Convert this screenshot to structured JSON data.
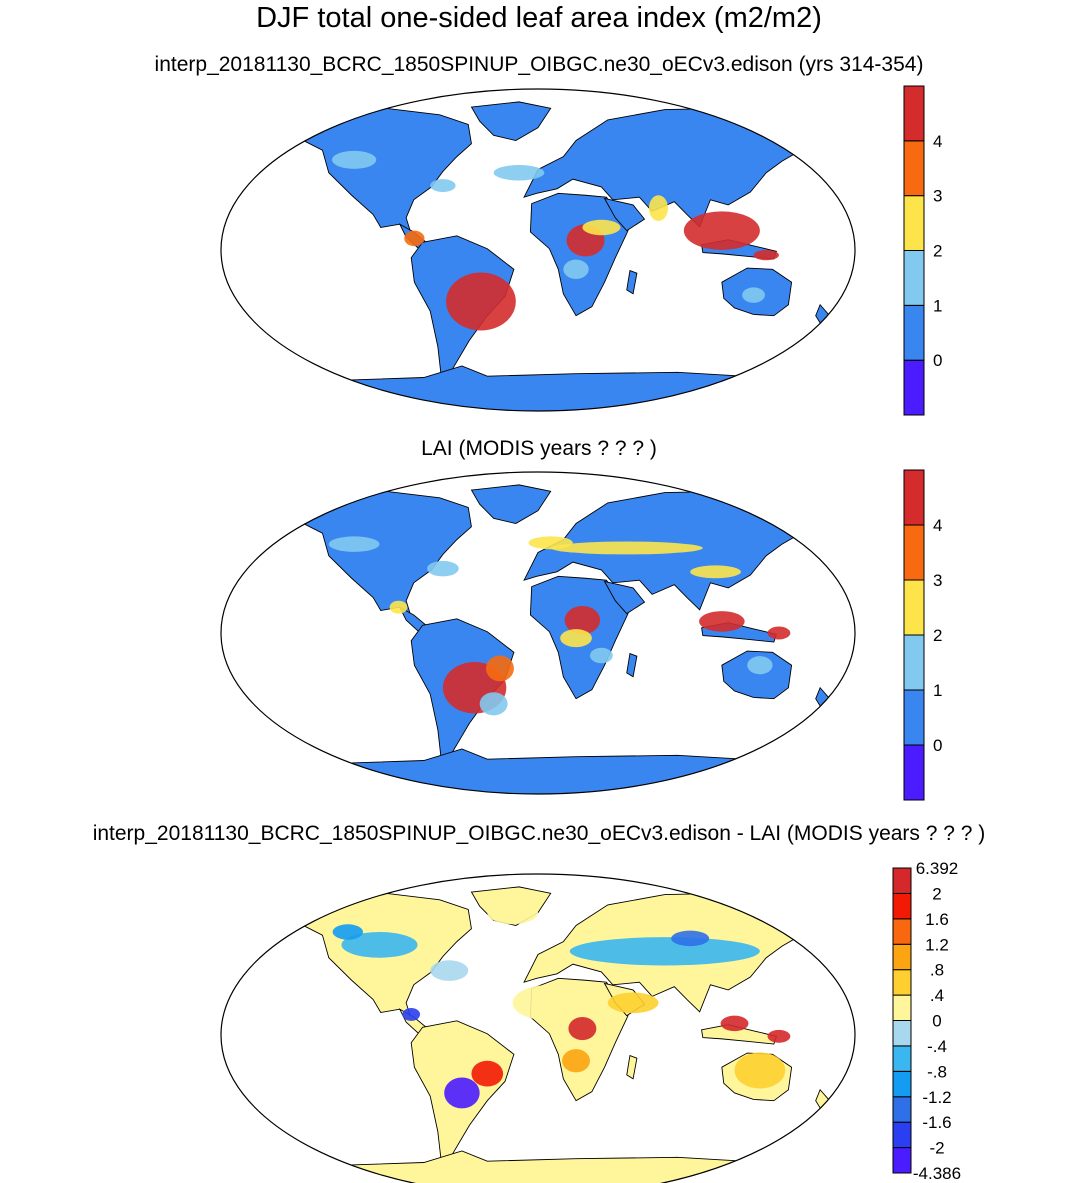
{
  "title": "DJF total one-sided leaf area index (m2/m2)",
  "colors": {
    "lai": [
      "#4b1cff",
      "#3a86f0",
      "#82c9f0",
      "#fde44a",
      "#f76a10",
      "#d42c2c"
    ],
    "diff": [
      "#4b1cff",
      "#2a3ef2",
      "#2f70e8",
      "#149cf2",
      "#3ab6f0",
      "#a8d8ee",
      "#fff59a",
      "#fdd02f",
      "#fca412",
      "#f9680e",
      "#f21a05",
      "#d4282b"
    ]
  },
  "chart_data": [
    {
      "type": "heatmap",
      "title": "interp_20181130_BCRC_1850SPINUP_OIBGC.ne30_oECv3.edison (yrs 314-354)",
      "projection": "Robinson",
      "colorbar": {
        "labels": [
          "0",
          "1",
          "2",
          "3",
          "4"
        ],
        "levels": [
          0,
          1,
          2,
          3,
          4
        ],
        "n_bins": 6
      }
    },
    {
      "type": "heatmap",
      "title": "LAI (MODIS years ? ? ? )",
      "projection": "Robinson",
      "colorbar": {
        "labels": [
          "0",
          "1",
          "2",
          "3",
          "4"
        ],
        "levels": [
          0,
          1,
          2,
          3,
          4
        ],
        "n_bins": 6
      }
    },
    {
      "type": "heatmap",
      "title": "interp_20181130_BCRC_1850SPINUP_OIBGC.ne30_oECv3.edison - LAI (MODIS years ? ? ? )",
      "projection": "Robinson",
      "colorbar": {
        "labels": [
          "6.392",
          "2",
          "1.6",
          "1.2",
          ".8",
          ".4",
          "0",
          "-.4",
          "-.8",
          "-1.2",
          "-1.6",
          "-2",
          "-4.386"
        ],
        "levels": [
          -4.386,
          -2,
          -1.6,
          -1.2,
          -0.8,
          -0.4,
          0,
          0.4,
          0.8,
          1.2,
          1.6,
          2,
          6.392
        ],
        "n_bins": 12
      }
    }
  ]
}
